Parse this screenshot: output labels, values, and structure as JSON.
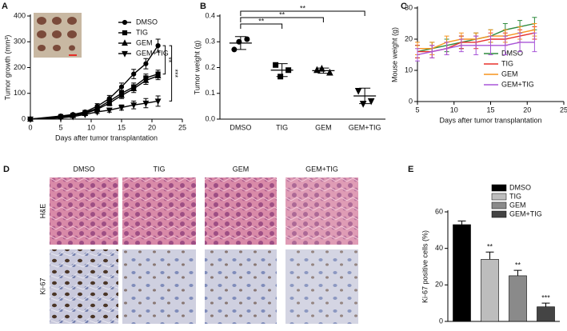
{
  "chart_data": [
    {
      "type": "line",
      "label": "A",
      "xlabel": "Days after tumor transplantation",
      "ylabel": "Tumor growth (mm³)",
      "x": [
        0,
        5,
        7,
        9,
        11,
        13,
        15,
        17,
        19,
        21
      ],
      "series": [
        {
          "name": "DMSO",
          "marker": "circle",
          "values": [
            0,
            12,
            18,
            28,
            50,
            80,
            125,
            175,
            215,
            285
          ],
          "errors": [
            0,
            3,
            4,
            6,
            10,
            12,
            15,
            18,
            20,
            25
          ]
        },
        {
          "name": "TIG",
          "marker": "square",
          "values": [
            0,
            10,
            15,
            25,
            42,
            70,
            100,
            125,
            160,
            175
          ],
          "errors": [
            0,
            3,
            4,
            5,
            8,
            10,
            12,
            15,
            15,
            15
          ]
        },
        {
          "name": "GEM",
          "marker": "triangle-up",
          "values": [
            0,
            8,
            14,
            22,
            38,
            62,
            92,
            118,
            150,
            168
          ],
          "errors": [
            0,
            3,
            4,
            5,
            8,
            10,
            12,
            15,
            15,
            15
          ]
        },
        {
          "name": "GEM+TIG",
          "marker": "triangle-down",
          "values": [
            0,
            5,
            10,
            18,
            28,
            35,
            45,
            55,
            62,
            70
          ],
          "errors": [
            0,
            2,
            3,
            4,
            6,
            8,
            10,
            15,
            18,
            20
          ]
        }
      ],
      "xlim": [
        0,
        25
      ],
      "xticks": [
        0,
        5,
        10,
        15,
        20,
        25
      ],
      "ylim": [
        0,
        400
      ],
      "yticks": [
        0,
        100,
        200,
        300,
        400
      ],
      "legend": "upper-right",
      "significance": [
        "**",
        "***"
      ]
    },
    {
      "type": "dot",
      "label": "B",
      "ylabel": "Tumor weight (g)",
      "categories": [
        "DMSO",
        "TIG",
        "GEM",
        "GEM+TIG"
      ],
      "markers": [
        "circle",
        "square",
        "triangle-up",
        "triangle-down"
      ],
      "points": [
        [
          0.27,
          0.31,
          0.3
        ],
        [
          0.21,
          0.19,
          0.165
        ],
        [
          0.19,
          0.18,
          0.195
        ],
        [
          0.11,
          0.07,
          0.06
        ]
      ],
      "means": [
        0.295,
        0.19,
        0.188,
        0.09
      ],
      "sd": [
        0.025,
        0.025,
        0.01,
        0.03
      ],
      "ylim": [
        0,
        0.4
      ],
      "yticks": [
        {
          "value": 0,
          "label": "0.0"
        },
        0.1,
        0.2,
        0.3,
        0.4
      ],
      "significance": [
        "**",
        "**",
        "**"
      ]
    },
    {
      "type": "line",
      "label": "C",
      "xlabel": "Days after tumor transplantation",
      "ylabel": "Mouse weight (g)",
      "x": [
        5,
        7,
        9,
        11,
        13,
        15,
        17,
        19,
        21
      ],
      "series": [
        {
          "name": "DMSO",
          "color": "#2e8b3e",
          "values": [
            16,
            17,
            18,
            19,
            20,
            21,
            23,
            24,
            25
          ],
          "errors": [
            2,
            2,
            2,
            2,
            2,
            2,
            2,
            2,
            2
          ]
        },
        {
          "name": "TIG",
          "color": "#e8302a",
          "values": [
            16,
            16,
            17,
            19,
            19,
            20,
            20,
            21,
            22
          ],
          "errors": [
            2,
            2,
            2,
            2,
            2,
            2,
            2,
            2,
            2
          ]
        },
        {
          "name": "GEM",
          "color": "#f7941d",
          "values": [
            17,
            17,
            19,
            20,
            20,
            21,
            21,
            22,
            23
          ],
          "errors": [
            2,
            2,
            2,
            2,
            2,
            2,
            2,
            2,
            2
          ]
        },
        {
          "name": "GEM+TIG",
          "color": "#a855d8",
          "values": [
            15,
            16,
            17,
            18,
            18,
            18,
            18,
            19,
            19
          ],
          "errors": [
            2,
            2,
            2,
            2,
            3,
            3,
            3,
            3,
            3
          ]
        }
      ],
      "xlim": [
        5,
        25
      ],
      "xticks": [
        5,
        10,
        15,
        20,
        25
      ],
      "ylim": [
        0,
        30
      ],
      "yticks": [
        0,
        10,
        20,
        30
      ],
      "legend": "lower-right"
    },
    {
      "type": "bar",
      "label": "E",
      "ylabel": "Ki-67 positive cells (%)",
      "categories": [
        "DMSO",
        "TIG",
        "GEM",
        "GEM+TIG"
      ],
      "values": [
        53,
        34,
        25,
        8
      ],
      "errors": [
        2,
        4,
        3,
        2
      ],
      "colors": [
        "#000000",
        "#bdbdbd",
        "#8a8a8a",
        "#444444"
      ],
      "annotations": [
        null,
        "**",
        "**",
        "***"
      ],
      "ylim": [
        0,
        60
      ],
      "yticks": [
        0,
        20,
        40,
        60
      ],
      "legend": "upper-right"
    }
  ],
  "panel_d": {
    "label": "D",
    "columns": [
      "DMSO",
      "TIG",
      "GEM",
      "GEM+TIG"
    ],
    "rows": [
      "H&E",
      "Ki-67"
    ]
  }
}
